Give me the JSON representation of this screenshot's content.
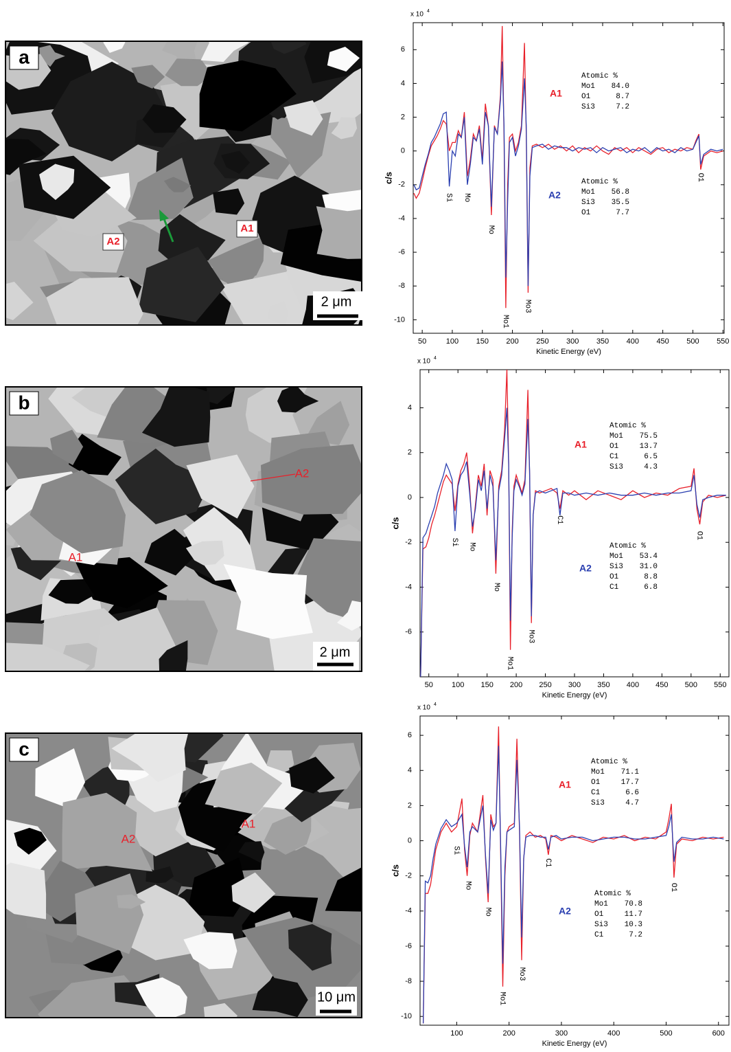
{
  "images": [
    {
      "letter": "a",
      "labels": [
        "A1",
        "A2"
      ],
      "scale": "2 μm"
    },
    {
      "letter": "b",
      "labels": [
        "A1",
        "A2"
      ],
      "scale": "2 μm"
    },
    {
      "letter": "c",
      "labels": [
        "A1",
        "A2"
      ],
      "scale": "10 μm"
    }
  ],
  "chart_data": [
    {
      "type": "line",
      "xlabel": "Kinetic Energy (eV)",
      "ylabel": "c/s",
      "y_multiplier": "x 10",
      "y_multiplier_exp": "4",
      "xlim": [
        35,
        552
      ],
      "xticks": [
        50,
        100,
        150,
        200,
        250,
        300,
        350,
        400,
        450,
        500,
        550
      ],
      "ylim": [
        -10.8,
        7.6
      ],
      "yticks": [
        -10,
        -8,
        -6,
        -4,
        -2,
        0,
        2,
        4,
        6
      ],
      "x": [
        36,
        40,
        45,
        50,
        55,
        60,
        65,
        70,
        75,
        80,
        85,
        90,
        95,
        100,
        105,
        110,
        115,
        120,
        125,
        130,
        135,
        140,
        145,
        150,
        155,
        160,
        165,
        170,
        175,
        180,
        183,
        186,
        189,
        192,
        195,
        200,
        205,
        210,
        215,
        220,
        223,
        226,
        229,
        233,
        240,
        250,
        260,
        270,
        280,
        290,
        300,
        310,
        320,
        330,
        340,
        350,
        360,
        370,
        380,
        390,
        400,
        410,
        420,
        430,
        440,
        450,
        460,
        470,
        480,
        490,
        500,
        505,
        510,
        513,
        518,
        530,
        540,
        550
      ],
      "series": [
        {
          "color": "#e8202a",
          "values": [
            -2.5,
            -2.8,
            -2.5,
            -1.8,
            -1,
            -0.3,
            0.3,
            0.6,
            0.9,
            1.3,
            1.8,
            1.6,
            0,
            0.5,
            0.5,
            1.2,
            0.8,
            2.3,
            -1.5,
            -0.5,
            1.0,
            0.6,
            1.5,
            -0.5,
            2.8,
            1.5,
            -3.8,
            1.5,
            1.0,
            3.3,
            7.4,
            1.0,
            -9.3,
            -2,
            0.8,
            1.0,
            0,
            0.5,
            1.5,
            6.4,
            1.0,
            -8.4,
            -1,
            0.3,
            0.4,
            0.2,
            0.4,
            0.1,
            0.3,
            0,
            0.3,
            -0.1,
            0.2,
            0,
            0.3,
            0,
            -0.2,
            0.2,
            0,
            0.2,
            -0.1,
            0.2,
            0,
            -0.2,
            0.1,
            0.2,
            -0.1,
            0.1,
            0,
            0.2,
            0.1,
            0.6,
            1.0,
            -1.1,
            -0.3,
            0,
            -0.1,
            0
          ]
        },
        {
          "color": "#2a3fb0",
          "values": [
            -2,
            -2.3,
            -2.2,
            -1.5,
            -0.8,
            -0.2,
            0.5,
            0.8,
            1.2,
            1.6,
            2.2,
            2.3,
            -2.1,
            0,
            -0.3,
            1.0,
            0.8,
            2.0,
            -2.0,
            -0.8,
            0.8,
            0.6,
            1.3,
            -0.8,
            2.3,
            1.5,
            -3.3,
            1.4,
            1.0,
            3.0,
            5.3,
            1.5,
            -7.5,
            -3,
            0.5,
            0.8,
            -0.3,
            0.3,
            1.3,
            4.3,
            1.5,
            -8.0,
            -1.5,
            0.2,
            0.3,
            0.4,
            0.1,
            0.3,
            0.2,
            0.2,
            0,
            0.2,
            0.1,
            0.2,
            -0.1,
            0.2,
            0,
            0.1,
            0.2,
            -0.1,
            0.1,
            0,
            0.2,
            -0.1,
            0.2,
            0,
            0.1,
            -0.1,
            0.2,
            0,
            0.1,
            0.5,
            0.9,
            -0.8,
            -0.2,
            0.1,
            0,
            0.1
          ]
        }
      ],
      "annotations": [
        {
          "text": "Si",
          "x": 95,
          "y": -2.5
        },
        {
          "text": "Mo",
          "x": 125,
          "y": -2.5
        },
        {
          "text": "Mo",
          "x": 165,
          "y": -4.4
        },
        {
          "text": "Mo1",
          "x": 189,
          "y": -9.7
        },
        {
          "text": "Mo3",
          "x": 226,
          "y": -8.8
        },
        {
          "text": "O1",
          "x": 513,
          "y": -1.3
        }
      ],
      "composition": [
        {
          "label": "A1",
          "color": "#e8202a",
          "title": "Atomic %",
          "rows": [
            [
              "Mo1",
              "84.0"
            ],
            [
              "O1",
              "8.7"
            ],
            [
              "Si3",
              "7.2"
            ]
          ]
        },
        {
          "label": "A2",
          "color": "#2a3fb0",
          "title": "Atomic %",
          "rows": [
            [
              "Mo1",
              "56.8"
            ],
            [
              "Si3",
              "35.5"
            ],
            [
              "O1",
              "7.7"
            ]
          ]
        }
      ]
    },
    {
      "type": "line",
      "xlabel": "Kinetic Energy (eV)",
      "ylabel": "c/s",
      "y_multiplier": "x 10",
      "y_multiplier_exp": "4",
      "xlim": [
        35,
        565
      ],
      "xticks": [
        50,
        100,
        150,
        200,
        250,
        300,
        350,
        400,
        450,
        500,
        550
      ],
      "ylim": [
        -8,
        5.7
      ],
      "yticks": [
        -6,
        -4,
        -2,
        0,
        2,
        4
      ],
      "x": [
        36,
        40,
        45,
        50,
        55,
        60,
        65,
        70,
        75,
        80,
        85,
        90,
        95,
        100,
        105,
        110,
        115,
        120,
        125,
        130,
        135,
        140,
        145,
        150,
        155,
        160,
        165,
        170,
        175,
        180,
        184,
        187,
        190,
        193,
        196,
        200,
        205,
        210,
        215,
        220,
        223,
        226,
        229,
        233,
        240,
        250,
        260,
        270,
        275,
        280,
        290,
        300,
        320,
        340,
        360,
        380,
        400,
        420,
        440,
        460,
        480,
        500,
        505,
        510,
        515,
        520,
        530,
        545,
        560
      ],
      "series": [
        {
          "color": "#e8202a",
          "values": [
            -8,
            -2.3,
            -2.2,
            -1.8,
            -1.2,
            -0.8,
            -0.3,
            0.2,
            0.7,
            1.0,
            0.8,
            0.6,
            -0.6,
            0.6,
            1.2,
            1.5,
            2.0,
            0.5,
            -1.6,
            -0.3,
            1.0,
            0.5,
            1.5,
            -0.8,
            1.2,
            0.8,
            -3.4,
            0.5,
            1.2,
            3.0,
            5.7,
            1.5,
            -6.8,
            -1.5,
            0.5,
            1.0,
            0.6,
            0.2,
            0.8,
            4.8,
            1.0,
            -5.6,
            -0.8,
            0.3,
            0.2,
            0.3,
            0.4,
            0.2,
            -0.5,
            0.3,
            0.1,
            0.3,
            -0.1,
            0.3,
            0.1,
            -0.1,
            0.3,
            0,
            0.2,
            0.1,
            0.4,
            0.5,
            1.3,
            -0.5,
            -1.2,
            -0.2,
            0.1,
            0,
            0.1
          ]
        },
        {
          "color": "#2a3fb0",
          "values": [
            -8,
            -1.8,
            -1.6,
            -1.2,
            -0.8,
            -0.4,
            0.2,
            0.6,
            1.0,
            1.5,
            1.2,
            0.8,
            -1.5,
            0.5,
            1.0,
            1.2,
            1.6,
            0.2,
            -1.3,
            -0.5,
            0.8,
            0.3,
            1.2,
            -0.5,
            1.0,
            0.5,
            -2.8,
            0.3,
            1.0,
            2.6,
            4.0,
            1.5,
            -5.5,
            -1.8,
            0.3,
            0.8,
            0.5,
            0.1,
            0.6,
            3.5,
            1.2,
            -5.3,
            -0.8,
            0.2,
            0.3,
            0.2,
            0.3,
            0.4,
            -0.8,
            0.2,
            0.2,
            0.1,
            0.2,
            0.1,
            0.2,
            0.1,
            0.1,
            0.2,
            0.1,
            0.2,
            0.2,
            0.3,
            1.0,
            -0.3,
            -0.9,
            -0.1,
            0,
            0.1,
            0.1
          ]
        }
      ],
      "annotations": [
        {
          "text": "Si",
          "x": 95,
          "y": -1.8
        },
        {
          "text": "Mo",
          "x": 125,
          "y": -2.0
        },
        {
          "text": "Mo",
          "x": 167,
          "y": -3.8
        },
        {
          "text": "Mo1",
          "x": 190,
          "y": -7.1
        },
        {
          "text": "Mo3",
          "x": 226,
          "y": -5.9
        },
        {
          "text": "C1",
          "x": 275,
          "y": -0.8
        },
        {
          "text": "O1",
          "x": 515,
          "y": -1.5
        }
      ],
      "composition": [
        {
          "label": "A1",
          "color": "#e8202a",
          "title": "Atomic %",
          "rows": [
            [
              "Mo1",
              "75.5"
            ],
            [
              "O1",
              "13.7"
            ],
            [
              "C1",
              "6.5"
            ],
            [
              "Si3",
              "4.3"
            ]
          ]
        },
        {
          "label": "A2",
          "color": "#2a3fb0",
          "title": "Atomic %",
          "rows": [
            [
              "Mo1",
              "53.4"
            ],
            [
              "Si3",
              "31.0"
            ],
            [
              "O1",
              "8.8"
            ],
            [
              "C1",
              "6.8"
            ]
          ]
        }
      ]
    },
    {
      "type": "line",
      "xlabel": "Kinetic Energy (eV)",
      "ylabel": "c/s",
      "y_multiplier": "x 10",
      "y_multiplier_exp": "4",
      "xlim": [
        30,
        620
      ],
      "xticks": [
        100,
        200,
        300,
        400,
        500,
        600
      ],
      "ylim": [
        -10.5,
        7.1
      ],
      "yticks": [
        -10,
        -8,
        -6,
        -4,
        -2,
        0,
        2,
        4,
        6
      ],
      "x": [
        36,
        40,
        45,
        50,
        55,
        60,
        70,
        80,
        90,
        100,
        110,
        115,
        120,
        125,
        130,
        140,
        150,
        155,
        160,
        165,
        170,
        175,
        180,
        184,
        188,
        192,
        196,
        200,
        210,
        215,
        220,
        224,
        228,
        232,
        240,
        250,
        260,
        270,
        275,
        280,
        290,
        300,
        320,
        340,
        360,
        380,
        400,
        420,
        440,
        460,
        480,
        500,
        505,
        510,
        515,
        520,
        530,
        550,
        570,
        590,
        610
      ],
      "series": [
        {
          "color": "#e8202a",
          "values": [
            -10.4,
            -3,
            -3,
            -2.5,
            -1.5,
            -0.5,
            0.5,
            1.0,
            0.5,
            0.8,
            2.4,
            -0.5,
            -2.0,
            0.3,
            1.0,
            0.5,
            2.6,
            -1.0,
            -3.5,
            1.5,
            0.8,
            1.0,
            6.5,
            -1.0,
            -8.3,
            -2.0,
            0.5,
            0.8,
            1.0,
            5.8,
            0.5,
            -6.8,
            -1.0,
            0.3,
            0.5,
            0.2,
            0.3,
            0.1,
            -0.8,
            0.3,
            0.2,
            0,
            0.3,
            0.1,
            -0.1,
            0.2,
            0.1,
            0.3,
            0,
            0.2,
            0.1,
            0.5,
            1.2,
            2.1,
            -2.1,
            -0.2,
            0.1,
            0,
            0.2,
            0.1,
            0.2
          ]
        },
        {
          "color": "#2a3fb0",
          "values": [
            -10.4,
            -2.3,
            -2.4,
            -2.0,
            -1.0,
            -0.2,
            0.7,
            1.2,
            0.8,
            1.0,
            1.5,
            -0.3,
            -1.5,
            0.5,
            0.8,
            0.5,
            2.0,
            -0.8,
            -3.0,
            1.2,
            0.6,
            1.0,
            5.4,
            -0.5,
            -7.0,
            -1.5,
            0.5,
            0.6,
            0.8,
            4.6,
            0.8,
            -5.5,
            -1.0,
            0.2,
            0.3,
            0.3,
            0.2,
            0.2,
            -0.5,
            0.2,
            0.3,
            0.1,
            0.2,
            0.2,
            0,
            0.1,
            0.2,
            0.2,
            0.1,
            0.1,
            0.2,
            0.3,
            0.8,
            1.5,
            -1.2,
            -0.1,
            0.2,
            0.1,
            0.1,
            0.2,
            0.1
          ]
        }
      ],
      "annotations": [
        {
          "text": "Si",
          "x": 100,
          "y": -0.3
        },
        {
          "text": "Mo",
          "x": 122,
          "y": -2.3
        },
        {
          "text": "Mo",
          "x": 160,
          "y": -3.8
        },
        {
          "text": "Mo1",
          "x": 188,
          "y": -8.6
        },
        {
          "text": "Mo3",
          "x": 225,
          "y": -7.2
        },
        {
          "text": "C1",
          "x": 275,
          "y": -1.0
        },
        {
          "text": "O1",
          "x": 515,
          "y": -2.4
        }
      ],
      "composition": [
        {
          "label": "A1",
          "color": "#e8202a",
          "title": "Atomic %",
          "rows": [
            [
              "Mo1",
              "71.1"
            ],
            [
              "O1",
              "17.7"
            ],
            [
              "C1",
              "6.6"
            ],
            [
              "Si3",
              "4.7"
            ]
          ]
        },
        {
          "label": "A2",
          "color": "#2a3fb0",
          "title": "Atomic %",
          "rows": [
            [
              "Mo1",
              "70.8"
            ],
            [
              "O1",
              "11.7"
            ],
            [
              "Si3",
              "10.3"
            ],
            [
              "C1",
              "7.2"
            ]
          ]
        }
      ]
    }
  ]
}
